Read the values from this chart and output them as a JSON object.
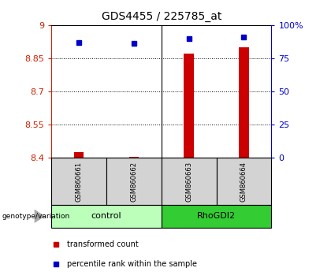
{
  "title": "GDS4455 / 225785_at",
  "samples": [
    "GSM860661",
    "GSM860662",
    "GSM860663",
    "GSM860664"
  ],
  "transformed_counts": [
    8.425,
    8.405,
    8.87,
    8.9
  ],
  "percentile_ranks": [
    87,
    86,
    90,
    91
  ],
  "groups": [
    {
      "label": "control",
      "samples": [
        0,
        1
      ],
      "color": "#bbffbb"
    },
    {
      "label": "RhoGDI2",
      "samples": [
        2,
        3
      ],
      "color": "#44dd44"
    }
  ],
  "ylim_left": [
    8.4,
    9.0
  ],
  "ylim_right": [
    0,
    100
  ],
  "yticks_left": [
    8.4,
    8.55,
    8.7,
    8.85,
    9.0
  ],
  "ytick_labels_left": [
    "8.4",
    "8.55",
    "8.7",
    "8.85",
    "9"
  ],
  "yticks_right": [
    0,
    25,
    50,
    75,
    100
  ],
  "ytick_labels_right": [
    "0",
    "25",
    "50",
    "75",
    "100%"
  ],
  "grid_lines": [
    8.55,
    8.7,
    8.85
  ],
  "bar_color": "#cc0000",
  "dot_color": "#0000cc",
  "bar_width": 0.18,
  "background_color": "#ffffff",
  "plot_bg": "#ffffff",
  "label_color_left": "#cc2200",
  "label_color_right": "#0000cc",
  "cell_color": "#d3d3d3",
  "control_color": "#bbffbb",
  "rhodgi2_color": "#33cc33"
}
